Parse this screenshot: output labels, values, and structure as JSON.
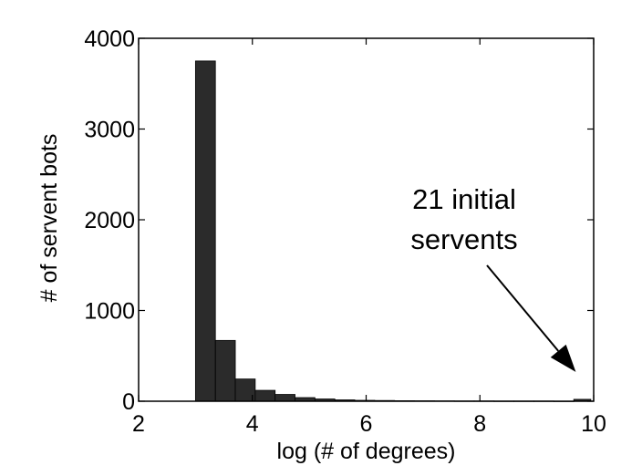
{
  "chart_data": {
    "type": "bar",
    "title": "",
    "xlabel": "log (# of degrees)",
    "ylabel": "# of servent bots",
    "xlim": [
      2,
      10
    ],
    "ylim": [
      0,
      4000
    ],
    "xticks": [
      "2",
      "4",
      "6",
      "8",
      "10"
    ],
    "yticks": [
      "0",
      "1000",
      "2000",
      "3000",
      "4000"
    ],
    "grid": false,
    "bar_color": "#2b2b2b",
    "bins": [
      {
        "x0": 3.0,
        "x1": 3.35,
        "value": 3750
      },
      {
        "x0": 3.35,
        "x1": 3.7,
        "value": 670
      },
      {
        "x0": 3.7,
        "x1": 4.05,
        "value": 245
      },
      {
        "x0": 4.05,
        "x1": 4.4,
        "value": 120
      },
      {
        "x0": 4.4,
        "x1": 4.75,
        "value": 75
      },
      {
        "x0": 4.75,
        "x1": 5.1,
        "value": 40
      },
      {
        "x0": 5.1,
        "x1": 5.45,
        "value": 25
      },
      {
        "x0": 5.45,
        "x1": 5.8,
        "value": 15
      },
      {
        "x0": 5.8,
        "x1": 6.15,
        "value": 10
      },
      {
        "x0": 6.15,
        "x1": 6.5,
        "value": 8
      },
      {
        "x0": 6.5,
        "x1": 6.85,
        "value": 6
      },
      {
        "x0": 6.85,
        "x1": 7.2,
        "value": 5
      },
      {
        "x0": 7.2,
        "x1": 7.55,
        "value": 4
      },
      {
        "x0": 7.55,
        "x1": 7.9,
        "value": 3
      },
      {
        "x0": 7.9,
        "x1": 8.25,
        "value": 3
      },
      {
        "x0": 8.25,
        "x1": 8.6,
        "value": 2
      },
      {
        "x0": 8.6,
        "x1": 8.95,
        "value": 2
      },
      {
        "x0": 8.95,
        "x1": 9.3,
        "value": 2
      },
      {
        "x0": 9.3,
        "x1": 9.65,
        "value": 1
      },
      {
        "x0": 9.65,
        "x1": 9.95,
        "value": 21
      }
    ],
    "annotation": {
      "lines": [
        "21 initial",
        "servents"
      ],
      "arrow_target": {
        "x": 9.75,
        "y": 21
      }
    }
  }
}
